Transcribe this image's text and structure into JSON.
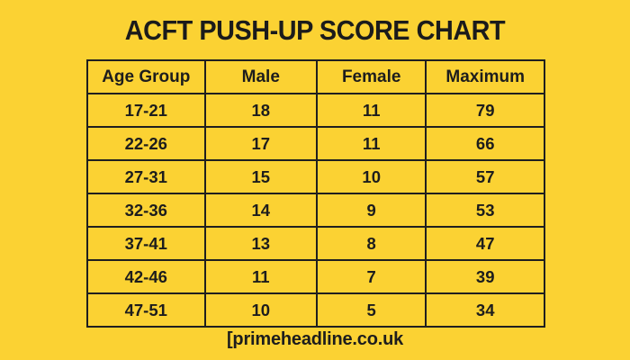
{
  "title": "ACFT PUSH-UP SCORE CHART",
  "footer": {
    "watermark": "[primeheadline.co.uk"
  },
  "colors": {
    "background": "#FBD233",
    "border": "#1F1F1F",
    "text": "#1D1D1D"
  },
  "table": {
    "headers": [
      "Age Group",
      "Male",
      "Female",
      "Maximum"
    ],
    "rows": [
      [
        "17-21",
        "18",
        "11",
        "79"
      ],
      [
        "22-26",
        "17",
        "11",
        "66"
      ],
      [
        "27-31",
        "15",
        "10",
        "57"
      ],
      [
        "32-36",
        "14",
        "9",
        "53"
      ],
      [
        "37-41",
        "13",
        "8",
        "47"
      ],
      [
        "42-46",
        "11",
        "7",
        "39"
      ],
      [
        "47-51",
        "10",
        "5",
        "34"
      ]
    ]
  },
  "chart_data": {
    "type": "table",
    "title": "ACFT PUSH-UP SCORE CHART",
    "columns": [
      "Age Group",
      "Male",
      "Female",
      "Maximum"
    ],
    "rows": [
      {
        "age_group": "17-21",
        "male": 18,
        "female": 11,
        "maximum": 79
      },
      {
        "age_group": "22-26",
        "male": 17,
        "female": 11,
        "maximum": 66
      },
      {
        "age_group": "27-31",
        "male": 15,
        "female": 10,
        "maximum": 57
      },
      {
        "age_group": "32-36",
        "male": 14,
        "female": 9,
        "maximum": 53
      },
      {
        "age_group": "37-41",
        "male": 13,
        "female": 8,
        "maximum": 47
      },
      {
        "age_group": "42-46",
        "male": 11,
        "female": 7,
        "maximum": 39
      },
      {
        "age_group": "47-51",
        "male": 10,
        "female": 5,
        "maximum": 34
      }
    ],
    "legend_position": "none",
    "grid": true
  }
}
